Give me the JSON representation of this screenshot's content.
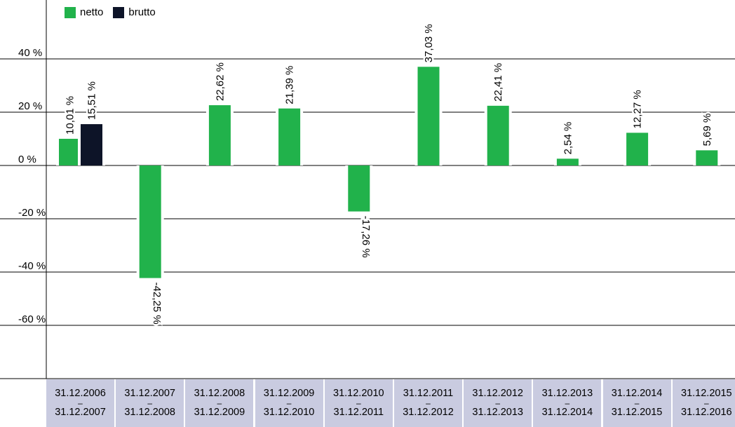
{
  "chart_data": {
    "type": "bar",
    "categories": [
      [
        "31.12.2006",
        "31.12.2007"
      ],
      [
        "31.12.2007",
        "31.12.2008"
      ],
      [
        "31.12.2008",
        "31.12.2009"
      ],
      [
        "31.12.2009",
        "31.12.2010"
      ],
      [
        "31.12.2010",
        "31.12.2011"
      ],
      [
        "31.12.2011",
        "31.12.2012"
      ],
      [
        "31.12.2012",
        "31.12.2013"
      ],
      [
        "31.12.2013",
        "31.12.2014"
      ],
      [
        "31.12.2014",
        "31.12.2015"
      ],
      [
        "31.12.2015",
        "31.12.2016"
      ]
    ],
    "category_separator": "–",
    "series": [
      {
        "name": "netto",
        "color": "#21b24b",
        "values": [
          10.01,
          -42.25,
          22.62,
          21.39,
          -17.26,
          37.03,
          22.41,
          2.54,
          12.27,
          5.69
        ],
        "labels": [
          "10,01 %",
          "-42,25 %",
          "22,62 %",
          "21,39 %",
          "-17,26 %",
          "37,03 %",
          "22,41 %",
          "2,54 %",
          "12,27 %",
          "5,69 %"
        ]
      },
      {
        "name": "brutto",
        "color": "#0d1428",
        "values": [
          15.51,
          null,
          null,
          null,
          null,
          null,
          null,
          null,
          null,
          null
        ],
        "labels": [
          "15,51 %",
          null,
          null,
          null,
          null,
          null,
          null,
          null,
          null,
          null
        ]
      }
    ],
    "yticks": [
      40,
      20,
      0,
      -20,
      -40,
      -60
    ],
    "ytick_labels": [
      "40 %",
      "20 %",
      "0 %",
      "-20 %",
      "-40 %",
      "-60 %"
    ],
    "ylim": [
      -80,
      60
    ],
    "grid": true,
    "legend": "top-left",
    "title": "",
    "xlabel": "",
    "ylabel": ""
  }
}
